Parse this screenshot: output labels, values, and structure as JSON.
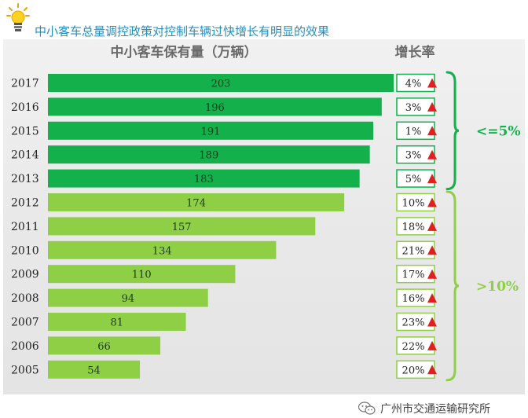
{
  "header": {
    "icon": "lightbulb-icon",
    "headline": "中小客车总量调控政策对控制车辆过快增长有明显的效果"
  },
  "chart_data": {
    "type": "bar",
    "orientation": "horizontal",
    "title": "中小客车保有量（万辆）",
    "growth_header": "增长率",
    "categories": [
      "2017",
      "2016",
      "2015",
      "2014",
      "2013",
      "2012",
      "2011",
      "2010",
      "2009",
      "2008",
      "2007",
      "2006",
      "2005"
    ],
    "values": [
      203,
      196,
      191,
      189,
      183,
      174,
      157,
      134,
      110,
      94,
      81,
      66,
      54
    ],
    "growth_rates": [
      "4%",
      "3%",
      "1%",
      "3%",
      "5%",
      "10%",
      "18%",
      "21%",
      "17%",
      "16%",
      "23%",
      "22%",
      "20%"
    ],
    "groups": [
      {
        "label": "<=5%",
        "years": [
          "2017",
          "2016",
          "2015",
          "2014",
          "2013"
        ],
        "color": "#13b04b"
      },
      {
        "label": ">10%",
        "years": [
          "2012",
          "2011",
          "2010",
          "2009",
          "2008",
          "2007",
          "2006",
          "2005"
        ],
        "color": "#8fcf45"
      }
    ],
    "colors": {
      "dark_green": "#13b04b",
      "light_green": "#8fcf45",
      "arrow_red": "#e02020"
    }
  },
  "watermark": {
    "icon": "wechat-icon",
    "text": "广州市交通运输研究所"
  }
}
